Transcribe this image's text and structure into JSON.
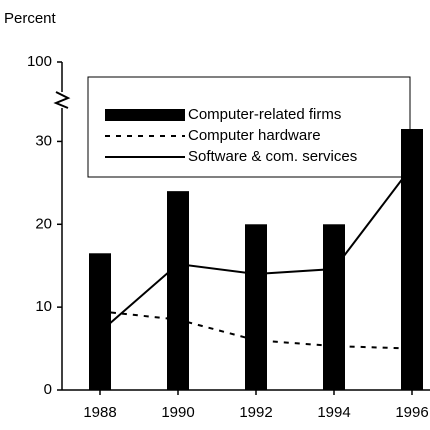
{
  "chart_data": {
    "type": "bar_line",
    "y_axis_label": "Percent",
    "categories": [
      "1988",
      "1990",
      "1992",
      "1994",
      "1996"
    ],
    "series": [
      {
        "name": "Computer-related firms",
        "kind": "bar",
        "color": "#000000",
        "values": [
          16.5,
          24,
          20,
          20,
          31.5
        ]
      },
      {
        "name": "Computer hardware",
        "kind": "line",
        "dash": "dashed",
        "color": "#000000",
        "values": [
          9.5,
          8.5,
          6,
          5.3,
          5
        ]
      },
      {
        "name": "Software & com. services",
        "kind": "line",
        "dash": "solid",
        "color": "#000000",
        "values": [
          7,
          15.2,
          14,
          14.6,
          27
        ]
      }
    ],
    "ylim": [
      0,
      100
    ],
    "yticks": [
      0,
      10,
      20,
      30,
      100
    ],
    "axis_break": [
      35,
      100
    ],
    "legend": "top"
  }
}
